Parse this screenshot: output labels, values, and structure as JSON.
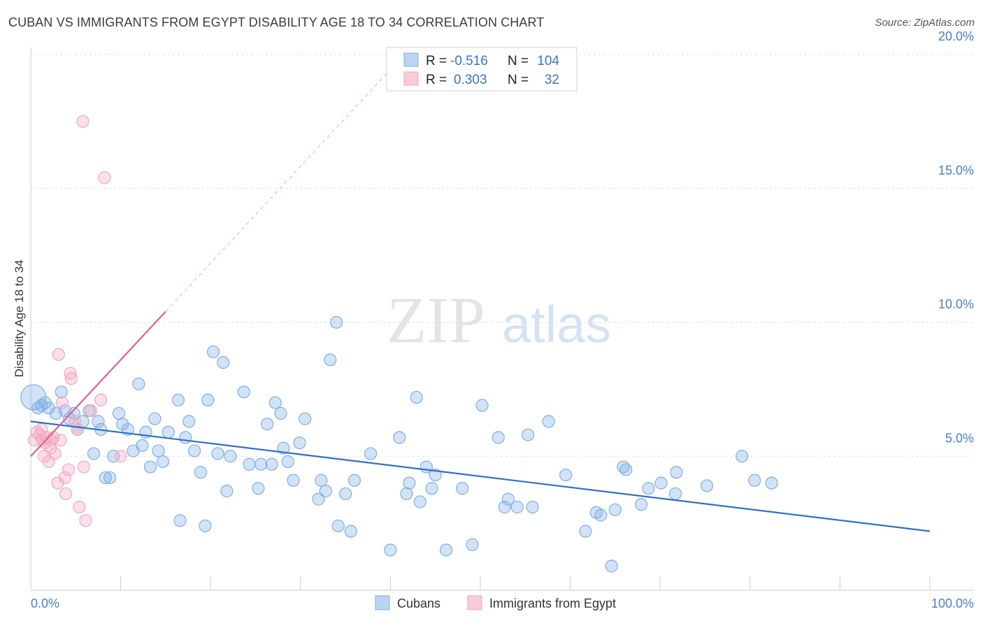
{
  "title": "CUBAN VS IMMIGRANTS FROM EGYPT DISABILITY AGE 18 TO 34 CORRELATION CHART",
  "source": "Source: ZipAtlas.com",
  "watermark": {
    "zip": "ZIP",
    "atlas": "atlas"
  },
  "chart_data": {
    "type": "scatter",
    "xlabel": "",
    "ylabel": "Disability Age 18 to 34",
    "xlim": [
      0,
      100
    ],
    "ylim": [
      0,
      20
    ],
    "x_tick_labels": [
      "0.0%",
      "100.0%"
    ],
    "y_ticks": [
      5,
      10,
      15,
      20
    ],
    "y_tick_labels": [
      "5.0%",
      "10.0%",
      "15.0%",
      "20.0%"
    ],
    "grid": true,
    "legend_position": "top-center",
    "legend": [
      {
        "r_label": "R =",
        "r_value": "-0.516",
        "n_label": "N =",
        "n_value": "104"
      },
      {
        "r_label": "R =",
        "r_value": "0.303",
        "n_label": "N =",
        "n_value": "32"
      }
    ],
    "series": [
      {
        "name": "Cubans",
        "color": "#7faee6",
        "line_color": "#2f6fcc",
        "trend": {
          "x": [
            0,
            100
          ],
          "y": [
            6.3,
            2.2
          ]
        },
        "points": [
          [
            0.3,
            7.2
          ],
          [
            0.8,
            6.8
          ],
          [
            1.2,
            6.9
          ],
          [
            1.6,
            7.0
          ],
          [
            2.0,
            6.8
          ],
          [
            2.8,
            6.6
          ],
          [
            3.4,
            7.4
          ],
          [
            3.8,
            6.7
          ],
          [
            4.3,
            6.4
          ],
          [
            4.8,
            6.6
          ],
          [
            5.2,
            6.0
          ],
          [
            5.8,
            6.3
          ],
          [
            6.5,
            6.7
          ],
          [
            7.0,
            5.1
          ],
          [
            7.5,
            6.3
          ],
          [
            7.8,
            6.0
          ],
          [
            8.3,
            4.2
          ],
          [
            8.8,
            4.2
          ],
          [
            9.2,
            5.0
          ],
          [
            9.8,
            6.6
          ],
          [
            10.2,
            6.2
          ],
          [
            10.8,
            6.0
          ],
          [
            11.4,
            5.2
          ],
          [
            12.0,
            7.7
          ],
          [
            12.4,
            5.4
          ],
          [
            12.8,
            5.9
          ],
          [
            13.3,
            4.6
          ],
          [
            13.8,
            6.4
          ],
          [
            14.2,
            5.2
          ],
          [
            14.7,
            4.8
          ],
          [
            15.3,
            5.9
          ],
          [
            16.4,
            7.1
          ],
          [
            16.6,
            2.6
          ],
          [
            17.2,
            5.7
          ],
          [
            17.6,
            6.3
          ],
          [
            18.2,
            5.2
          ],
          [
            18.9,
            4.4
          ],
          [
            19.4,
            2.4
          ],
          [
            19.7,
            7.1
          ],
          [
            20.3,
            8.9
          ],
          [
            20.8,
            5.1
          ],
          [
            21.4,
            8.5
          ],
          [
            21.8,
            3.7
          ],
          [
            22.2,
            5.0
          ],
          [
            23.7,
            7.4
          ],
          [
            24.3,
            4.7
          ],
          [
            25.3,
            3.8
          ],
          [
            25.6,
            4.7
          ],
          [
            26.3,
            6.2
          ],
          [
            26.8,
            4.7
          ],
          [
            27.2,
            7.0
          ],
          [
            27.8,
            6.6
          ],
          [
            28.1,
            5.3
          ],
          [
            28.6,
            4.8
          ],
          [
            29.2,
            4.1
          ],
          [
            29.9,
            5.5
          ],
          [
            30.5,
            6.4
          ],
          [
            32.0,
            3.4
          ],
          [
            32.3,
            4.1
          ],
          [
            32.8,
            3.7
          ],
          [
            33.3,
            8.6
          ],
          [
            34.0,
            10.0
          ],
          [
            34.2,
            2.4
          ],
          [
            35.0,
            3.6
          ],
          [
            35.6,
            2.2
          ],
          [
            36.0,
            4.1
          ],
          [
            37.8,
            5.1
          ],
          [
            40.0,
            1.5
          ],
          [
            41.0,
            5.7
          ],
          [
            41.8,
            3.6
          ],
          [
            42.1,
            4.0
          ],
          [
            42.9,
            7.2
          ],
          [
            43.3,
            3.3
          ],
          [
            44.0,
            4.6
          ],
          [
            44.6,
            3.8
          ],
          [
            45.0,
            4.3
          ],
          [
            46.2,
            1.5
          ],
          [
            48.0,
            3.8
          ],
          [
            49.1,
            1.7
          ],
          [
            50.2,
            6.9
          ],
          [
            52.0,
            5.7
          ],
          [
            52.7,
            3.1
          ],
          [
            53.1,
            3.4
          ],
          [
            54.1,
            3.1
          ],
          [
            55.3,
            5.8
          ],
          [
            55.8,
            3.1
          ],
          [
            57.6,
            6.3
          ],
          [
            59.5,
            4.3
          ],
          [
            61.7,
            2.2
          ],
          [
            62.9,
            2.9
          ],
          [
            63.4,
            2.8
          ],
          [
            64.6,
            0.9
          ],
          [
            65.0,
            3.0
          ],
          [
            65.9,
            4.6
          ],
          [
            66.2,
            4.5
          ],
          [
            67.9,
            3.2
          ],
          [
            68.7,
            3.8
          ],
          [
            70.1,
            4.0
          ],
          [
            71.7,
            3.6
          ],
          [
            71.8,
            4.4
          ],
          [
            75.2,
            3.9
          ],
          [
            79.1,
            5.0
          ],
          [
            80.5,
            4.1
          ],
          [
            82.4,
            4.0
          ]
        ]
      },
      {
        "name": "Immigrants from Egypt",
        "color": "#f4a6bf",
        "line_color": "#e0608a",
        "trend": {
          "x": [
            0,
            15
          ],
          "y": [
            5.0,
            10.4
          ]
        },
        "trend_extension": {
          "x": [
            15,
            41
          ],
          "y": [
            10.4,
            19.8
          ]
        },
        "points": [
          [
            0.4,
            5.6
          ],
          [
            0.7,
            5.9
          ],
          [
            1.0,
            5.8
          ],
          [
            1.3,
            5.6
          ],
          [
            1.5,
            5.0
          ],
          [
            1.8,
            5.7
          ],
          [
            2.0,
            4.8
          ],
          [
            2.3,
            5.6
          ],
          [
            2.5,
            5.7
          ],
          [
            2.7,
            5.1
          ],
          [
            3.0,
            4.0
          ],
          [
            3.1,
            8.8
          ],
          [
            3.3,
            5.6
          ],
          [
            3.5,
            7.0
          ],
          [
            3.8,
            4.2
          ],
          [
            3.9,
            3.6
          ],
          [
            4.2,
            4.5
          ],
          [
            4.4,
            8.1
          ],
          [
            4.5,
            7.9
          ],
          [
            4.9,
            6.3
          ],
          [
            5.2,
            6.0
          ],
          [
            5.4,
            3.1
          ],
          [
            5.8,
            17.5
          ],
          [
            5.9,
            4.6
          ],
          [
            6.1,
            2.6
          ],
          [
            6.7,
            6.7
          ],
          [
            7.8,
            7.1
          ],
          [
            8.2,
            15.4
          ],
          [
            10.0,
            5.0
          ],
          [
            1.2,
            6.0
          ],
          [
            1.6,
            5.5
          ],
          [
            2.2,
            5.3
          ]
        ]
      }
    ]
  },
  "bottom_legend": [
    "Cubans",
    "Immigrants from Egypt"
  ]
}
